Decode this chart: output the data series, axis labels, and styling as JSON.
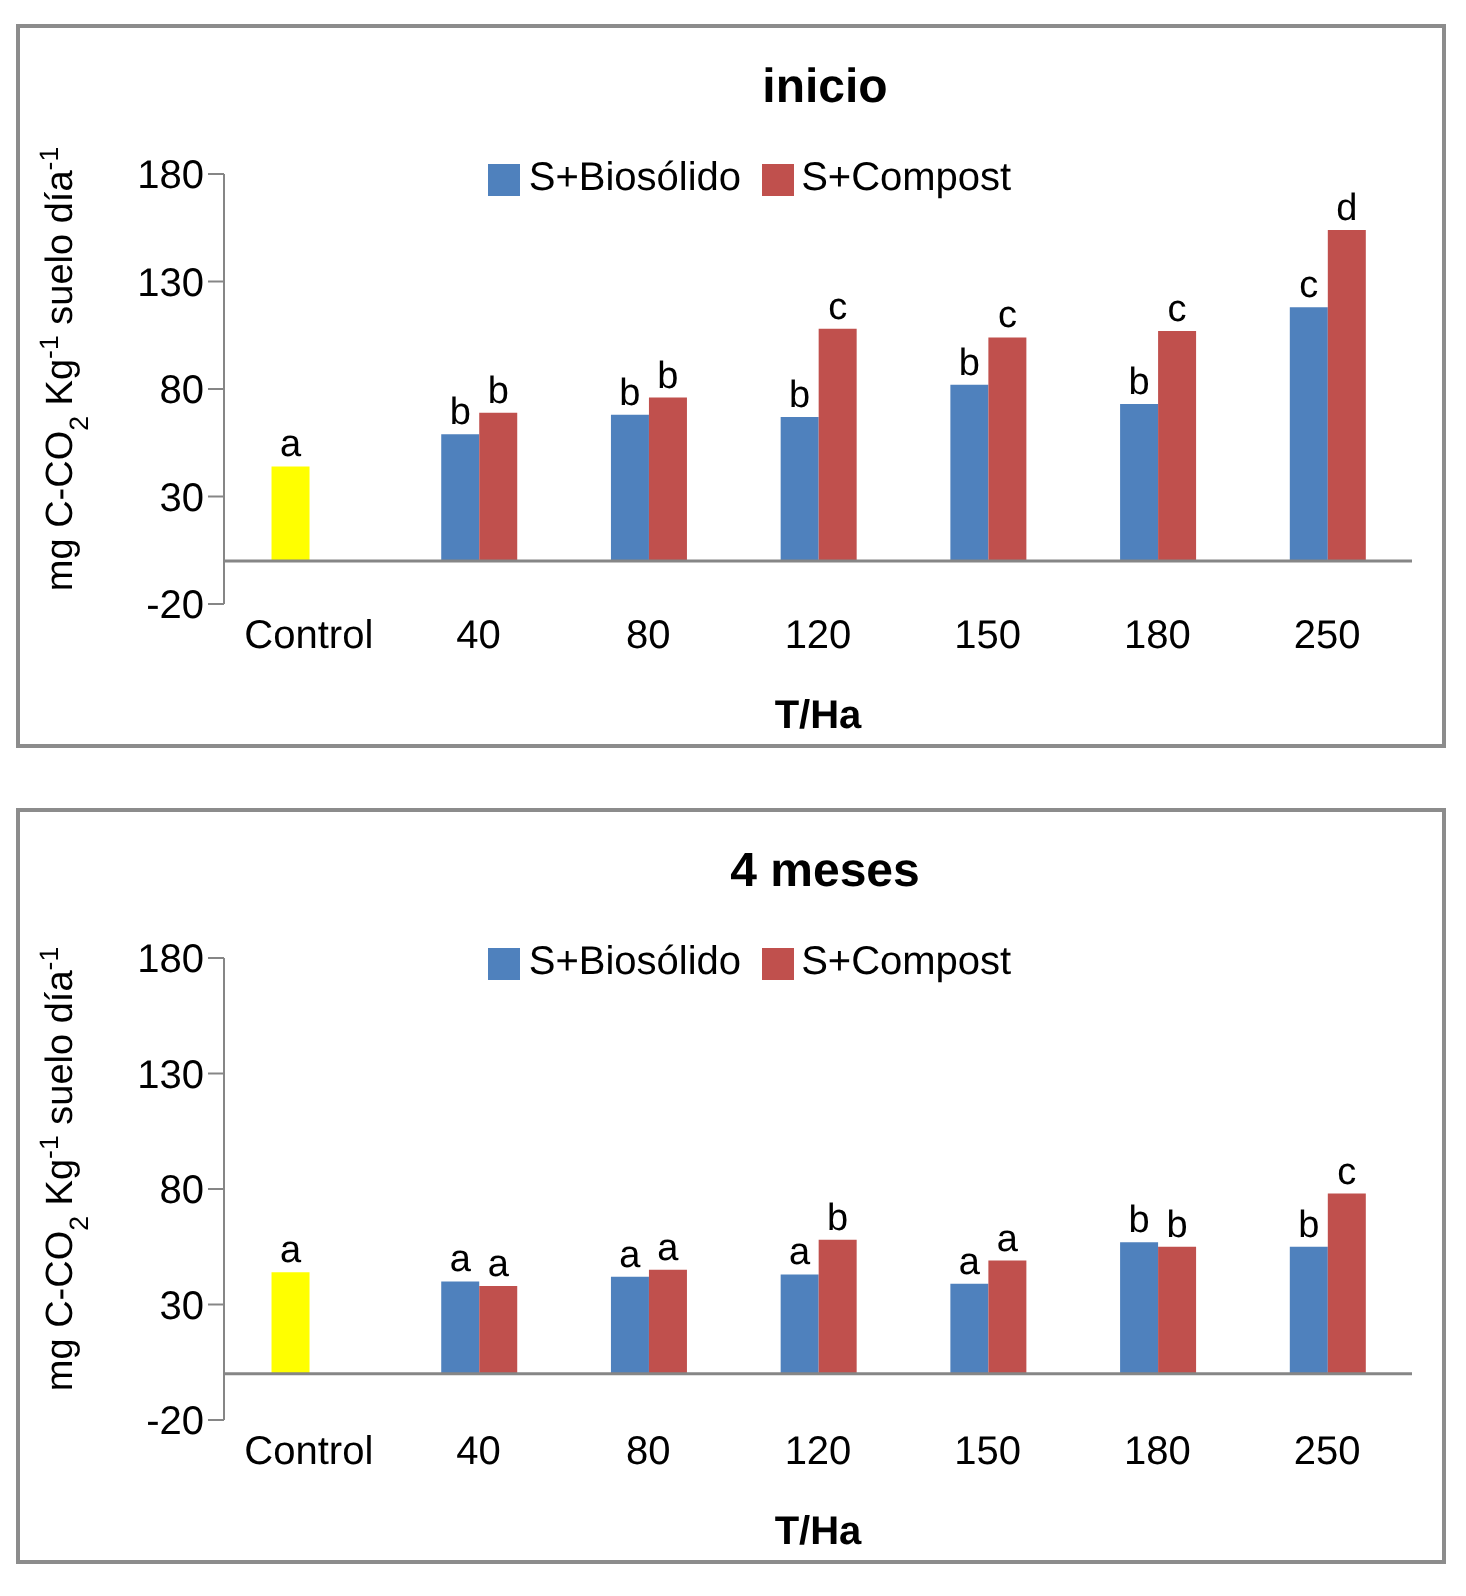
{
  "chart_data": [
    {
      "type": "bar",
      "title": "inicio",
      "xlabel": "T/Ha",
      "ylabel": "mg C-CO$_{2}$ Kg$^{-1}$ suelo día$^{-1}$",
      "categories": [
        "Control",
        "40",
        "80",
        "120",
        "150",
        "180",
        "250"
      ],
      "series": [
        {
          "name": "S+Biosólido",
          "color": "#4f81bd",
          "colors": [
            "#ffff00",
            "#4f81bd",
            "#4f81bd",
            "#4f81bd",
            "#4f81bd",
            "#4f81bd",
            "#4f81bd"
          ],
          "values": [
            44,
            59,
            68,
            67,
            82,
            73,
            118
          ],
          "value_labels": [
            "a",
            "b",
            "b",
            "b",
            "b",
            "b",
            "c"
          ]
        },
        {
          "name": "S+Compost",
          "color": "#c0504d",
          "values": [
            null,
            69,
            76,
            108,
            104,
            107,
            154
          ],
          "value_labels": [
            null,
            "b",
            "b",
            "c",
            "c",
            "c",
            "d"
          ]
        }
      ],
      "ylim": [
        -20,
        180
      ],
      "yticks": [
        -20,
        30,
        80,
        130,
        180
      ],
      "grid": false,
      "legend": "top"
    },
    {
      "type": "bar",
      "title": "4 meses",
      "xlabel": "T/Ha",
      "ylabel": "mg C-CO$_{2}$ Kg$^{-1}$ suelo día$^{-1}$",
      "categories": [
        "Control",
        "40",
        "80",
        "120",
        "150",
        "180",
        "250"
      ],
      "series": [
        {
          "name": "S+Biosólido",
          "color": "#4f81bd",
          "colors": [
            "#ffff00",
            "#4f81bd",
            "#4f81bd",
            "#4f81bd",
            "#4f81bd",
            "#4f81bd",
            "#4f81bd"
          ],
          "values": [
            44,
            40,
            42,
            43,
            39,
            57,
            55
          ],
          "value_labels": [
            "a",
            "a",
            "a",
            "a",
            "a",
            "b",
            "b"
          ]
        },
        {
          "name": "S+Compost",
          "color": "#c0504d",
          "values": [
            null,
            38,
            45,
            58,
            49,
            55,
            78
          ],
          "value_labels": [
            null,
            "a",
            "a",
            "b",
            "a",
            "b",
            "c"
          ]
        }
      ],
      "ylim": [
        -20,
        180
      ],
      "yticks": [
        -20,
        30,
        80,
        130,
        180
      ],
      "grid": false,
      "legend": "top"
    }
  ]
}
